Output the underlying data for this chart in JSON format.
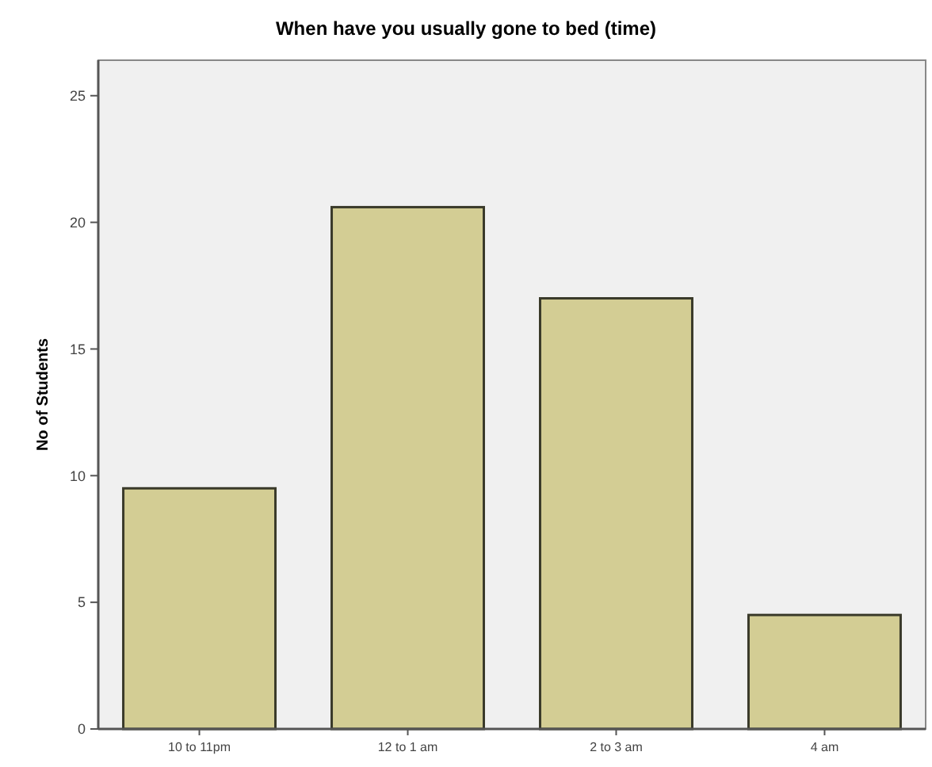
{
  "chart_data": {
    "type": "bar",
    "title": "When have you usually gone to bed (time)",
    "ylabel": "No of Students",
    "categories": [
      "10 to 11pm",
      "12 to 1 am",
      "2 to 3 am",
      "4 am"
    ],
    "values": [
      9.5,
      20.6,
      17,
      4.5
    ],
    "color": "#d3cd94",
    "ylim": [
      0,
      26.4
    ],
    "yticks": [
      0,
      5,
      10,
      15,
      20,
      25
    ],
    "grid": false
  }
}
